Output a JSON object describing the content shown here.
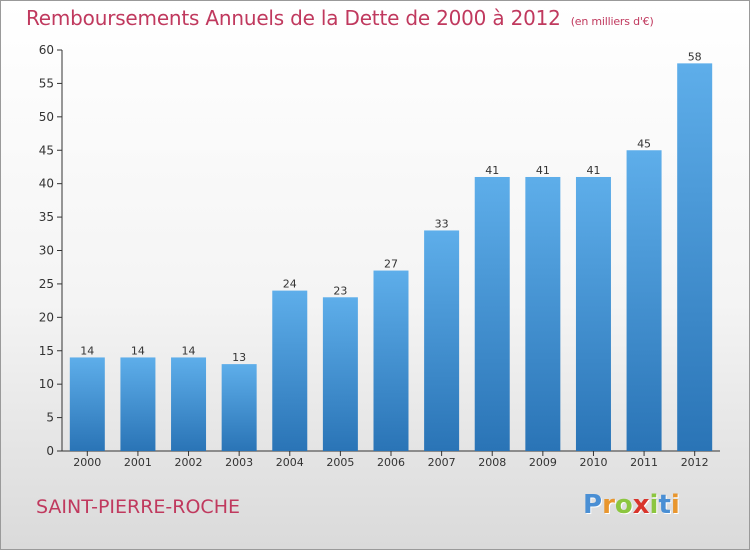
{
  "header": {
    "title": "Remboursements Annuels de la Dette de 2000 à 2012",
    "subtitle": "(en milliers d'€)"
  },
  "footer": {
    "commune": "SAINT-PIERRE-ROCHE",
    "logo_letters": [
      {
        "ch": "P",
        "color": "#4a8fd4"
      },
      {
        "ch": "r",
        "color": "#e8962e"
      },
      {
        "ch": "o",
        "color": "#8cc63f"
      },
      {
        "ch": "x",
        "color": "#d9342b"
      },
      {
        "ch": "i",
        "color": "#8cc63f"
      },
      {
        "ch": "t",
        "color": "#4a8fd4"
      },
      {
        "ch": "i",
        "color": "#e8962e"
      }
    ]
  },
  "colors": {
    "bar_top": "#5eaeea",
    "bar_bottom": "#2a74b6",
    "title": "#c0395e",
    "axis": "#333333"
  },
  "chart_data": {
    "type": "bar",
    "title": "Remboursements Annuels de la Dette de 2000 à 2012",
    "subtitle": "(en milliers d'€)",
    "categories": [
      "2000",
      "2001",
      "2002",
      "2003",
      "2004",
      "2005",
      "2006",
      "2007",
      "2008",
      "2009",
      "2010",
      "2011",
      "2012"
    ],
    "values": [
      14,
      14,
      14,
      13,
      24,
      23,
      27,
      33,
      41,
      41,
      41,
      45,
      58
    ],
    "ylim": [
      0,
      60
    ],
    "yticks": [
      0,
      5,
      10,
      15,
      20,
      25,
      30,
      35,
      40,
      45,
      50,
      55,
      60
    ],
    "xlabel": "",
    "ylabel": "",
    "grid": false,
    "data_labels": true
  }
}
